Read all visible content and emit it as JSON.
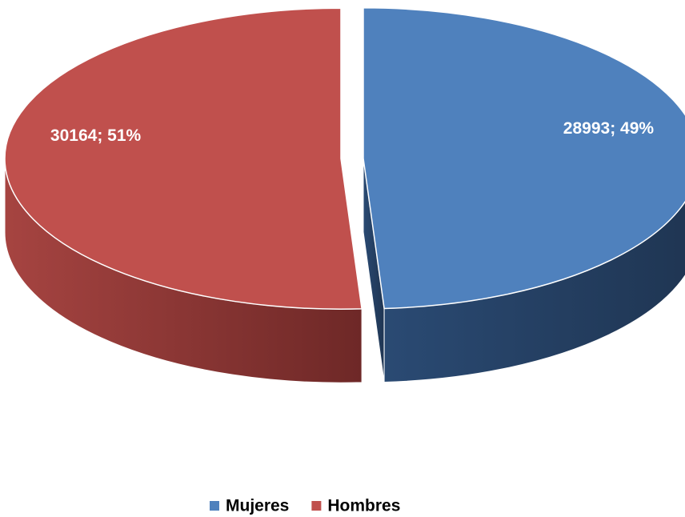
{
  "chart_data": {
    "type": "pie",
    "categories": [
      "Mujeres",
      "Hombres"
    ],
    "values": [
      28993,
      30164
    ],
    "value_labels": [
      "28993; 49%",
      "30164; 51%"
    ],
    "colors": [
      "#4f81bd",
      "#c0504d"
    ],
    "legend": "bottom"
  }
}
